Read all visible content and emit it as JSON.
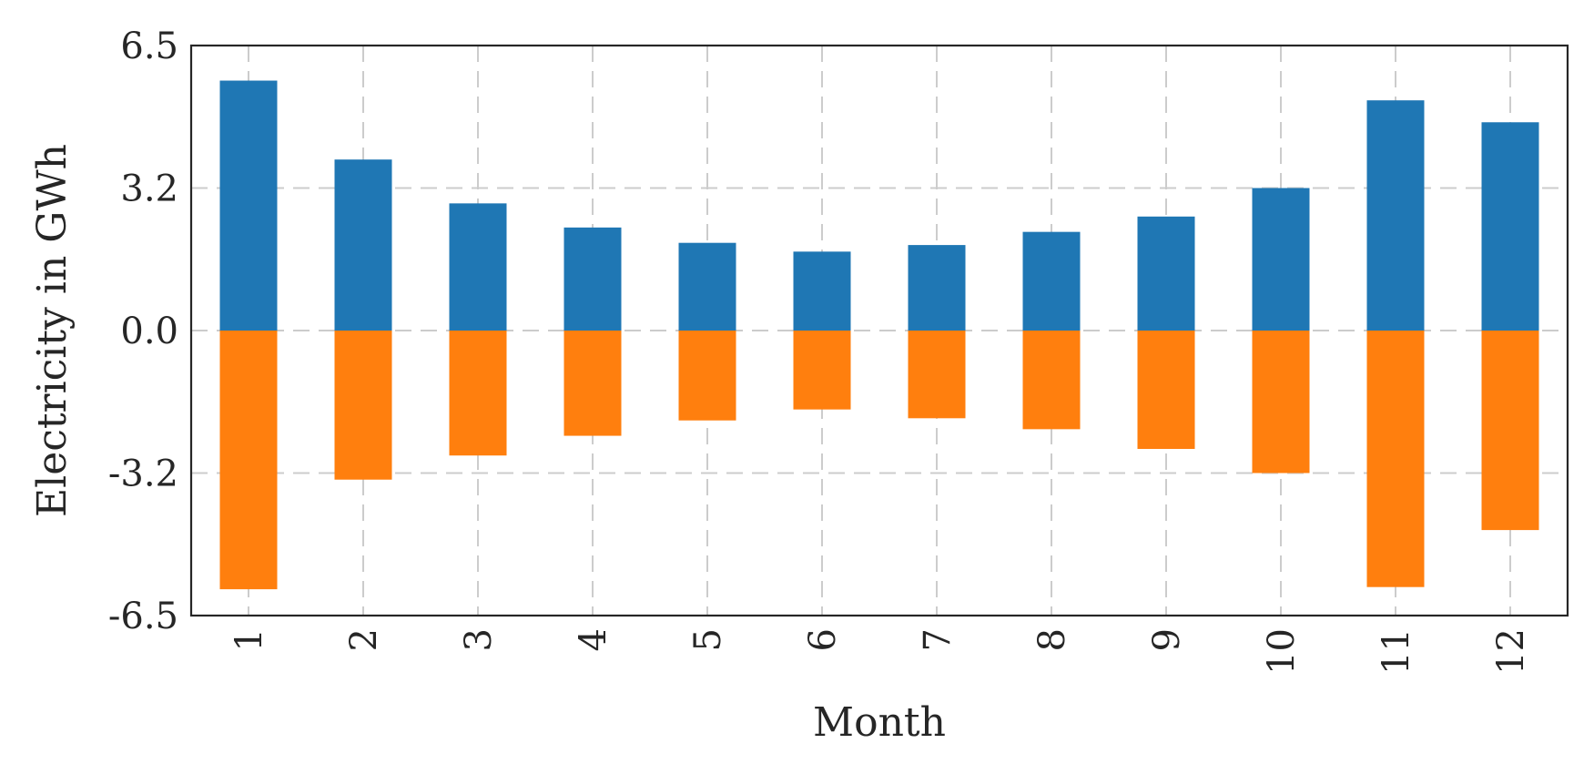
{
  "chart_data": {
    "type": "bar",
    "stacked": true,
    "categories": [
      "1",
      "2",
      "3",
      "4",
      "5",
      "6",
      "7",
      "8",
      "9",
      "10",
      "11",
      "12"
    ],
    "series": [
      {
        "color": "#1f77b4",
        "values": [
          5.7,
          3.9,
          2.9,
          2.35,
          2.0,
          1.8,
          1.95,
          2.25,
          2.6,
          3.25,
          5.25,
          4.75
        ]
      },
      {
        "color": "#ff7f0e",
        "values": [
          -5.9,
          -3.4,
          -2.85,
          -2.4,
          -2.05,
          -1.8,
          -2.0,
          -2.25,
          -2.7,
          -3.25,
          -5.85,
          -4.55
        ]
      }
    ],
    "xlabel": "Month",
    "ylabel": "Electricity in GWh",
    "ylim": [
      -6.5,
      6.5
    ],
    "yticks": [
      "-6.5",
      "-3.2",
      "0.0",
      "3.2",
      "6.5"
    ],
    "ytick_values": [
      -6.5,
      -3.25,
      0,
      3.25,
      6.5
    ],
    "grid": true,
    "grid_style": "dashed",
    "legend": "none"
  }
}
